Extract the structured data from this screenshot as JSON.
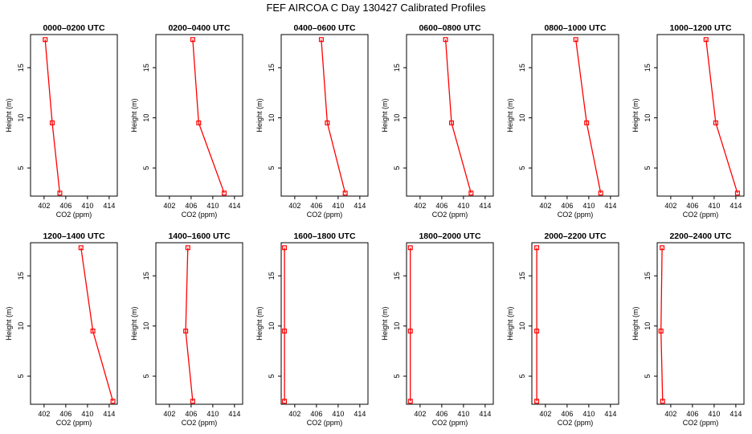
{
  "title": "FEF AIRCOA C  Day 130427  Calibrated Profiles",
  "colors": {
    "line": "#ff0000",
    "marker": "#ff0000",
    "axis": "#000000"
  },
  "chart_data": [
    {
      "type": "line",
      "title": "0000–0200 UTC",
      "xlabel": "CO2 (ppm)",
      "ylabel": "Height (m)",
      "xlim": [
        399.5,
        415.5
      ],
      "ylim": [
        2.2,
        18.3
      ],
      "xticks": [
        402,
        406,
        410,
        414
      ],
      "yticks": [
        5,
        10,
        15
      ],
      "x": [
        402.2,
        403.5,
        404.9
      ],
      "y": [
        17.8,
        9.5,
        2.5
      ]
    },
    {
      "type": "line",
      "title": "0200–0400 UTC",
      "xlabel": "CO2 (ppm)",
      "ylabel": "Height (m)",
      "xlim": [
        399.5,
        415.5
      ],
      "ylim": [
        2.2,
        18.3
      ],
      "xticks": [
        402,
        406,
        410,
        414
      ],
      "yticks": [
        5,
        10,
        15
      ],
      "x": [
        406.3,
        407.4,
        412.1
      ],
      "y": [
        17.8,
        9.5,
        2.5
      ]
    },
    {
      "type": "line",
      "title": "0400–0600 UTC",
      "xlabel": "CO2 (ppm)",
      "ylabel": "Height (m)",
      "xlim": [
        399.5,
        415.5
      ],
      "ylim": [
        2.2,
        18.3
      ],
      "xticks": [
        402,
        406,
        410,
        414
      ],
      "yticks": [
        5,
        10,
        15
      ],
      "x": [
        406.9,
        408.0,
        411.3
      ],
      "y": [
        17.8,
        9.5,
        2.5
      ]
    },
    {
      "type": "line",
      "title": "0600–0800 UTC",
      "xlabel": "CO2 (ppm)",
      "ylabel": "Height (m)",
      "xlim": [
        399.5,
        415.5
      ],
      "ylim": [
        2.2,
        18.3
      ],
      "xticks": [
        402,
        406,
        410,
        414
      ],
      "yticks": [
        5,
        10,
        15
      ],
      "x": [
        406.7,
        407.8,
        411.4
      ],
      "y": [
        17.8,
        9.5,
        2.5
      ]
    },
    {
      "type": "line",
      "title": "0800–1000 UTC",
      "xlabel": "CO2 (ppm)",
      "ylabel": "Height (m)",
      "xlim": [
        399.5,
        415.5
      ],
      "ylim": [
        2.2,
        18.3
      ],
      "xticks": [
        402,
        406,
        410,
        414
      ],
      "yticks": [
        5,
        10,
        15
      ],
      "x": [
        407.6,
        409.6,
        412.2
      ],
      "y": [
        17.8,
        9.5,
        2.5
      ]
    },
    {
      "type": "line",
      "title": "1000–1200 UTC",
      "xlabel": "CO2 (ppm)",
      "ylabel": "Height (m)",
      "xlim": [
        399.5,
        415.5
      ],
      "ylim": [
        2.2,
        18.3
      ],
      "xticks": [
        402,
        406,
        410,
        414
      ],
      "yticks": [
        5,
        10,
        15
      ],
      "x": [
        408.5,
        410.3,
        414.3
      ],
      "y": [
        17.8,
        9.5,
        2.5
      ]
    },
    {
      "type": "line",
      "title": "1200–1400 UTC",
      "xlabel": "CO2 (ppm)",
      "ylabel": "Height (m)",
      "xlim": [
        399.5,
        415.5
      ],
      "ylim": [
        2.2,
        18.3
      ],
      "xticks": [
        402,
        406,
        410,
        414
      ],
      "yticks": [
        5,
        10,
        15
      ],
      "x": [
        408.8,
        411.0,
        414.7
      ],
      "y": [
        17.8,
        9.5,
        2.5
      ]
    },
    {
      "type": "line",
      "title": "1400–1600 UTC",
      "xlabel": "CO2 (ppm)",
      "ylabel": "Height (m)",
      "xlim": [
        399.5,
        415.5
      ],
      "ylim": [
        2.2,
        18.3
      ],
      "xticks": [
        402,
        406,
        410,
        414
      ],
      "yticks": [
        5,
        10,
        15
      ],
      "x": [
        405.4,
        405.0,
        406.3
      ],
      "y": [
        17.8,
        9.5,
        2.5
      ]
    },
    {
      "type": "line",
      "title": "1600–1800 UTC",
      "xlabel": "CO2 (ppm)",
      "ylabel": "Height (m)",
      "xlim": [
        399.5,
        415.5
      ],
      "ylim": [
        2.2,
        18.3
      ],
      "xticks": [
        402,
        406,
        410,
        414
      ],
      "yticks": [
        5,
        10,
        15
      ],
      "x": [
        400.1,
        400.1,
        400.1
      ],
      "y": [
        17.8,
        9.5,
        2.5
      ]
    },
    {
      "type": "line",
      "title": "1800–2000 UTC",
      "xlabel": "CO2 (ppm)",
      "ylabel": "Height (m)",
      "xlim": [
        399.5,
        415.5
      ],
      "ylim": [
        2.2,
        18.3
      ],
      "xticks": [
        402,
        406,
        410,
        414
      ],
      "yticks": [
        5,
        10,
        15
      ],
      "x": [
        400.2,
        400.2,
        400.2
      ],
      "y": [
        17.8,
        9.5,
        2.5
      ]
    },
    {
      "type": "line",
      "title": "2000–2200 UTC",
      "xlabel": "CO2 (ppm)",
      "ylabel": "Height (m)",
      "xlim": [
        399.5,
        415.5
      ],
      "ylim": [
        2.2,
        18.3
      ],
      "xticks": [
        402,
        406,
        410,
        414
      ],
      "yticks": [
        5,
        10,
        15
      ],
      "x": [
        400.4,
        400.4,
        400.4
      ],
      "y": [
        17.8,
        9.5,
        2.5
      ]
    },
    {
      "type": "line",
      "title": "2200–2400 UTC",
      "xlabel": "CO2 (ppm)",
      "ylabel": "Height (m)",
      "xlim": [
        399.5,
        415.5
      ],
      "ylim": [
        2.2,
        18.3
      ],
      "xticks": [
        402,
        406,
        410,
        414
      ],
      "yticks": [
        5,
        10,
        15
      ],
      "x": [
        400.4,
        400.2,
        400.5
      ],
      "y": [
        17.8,
        9.5,
        2.5
      ]
    }
  ]
}
